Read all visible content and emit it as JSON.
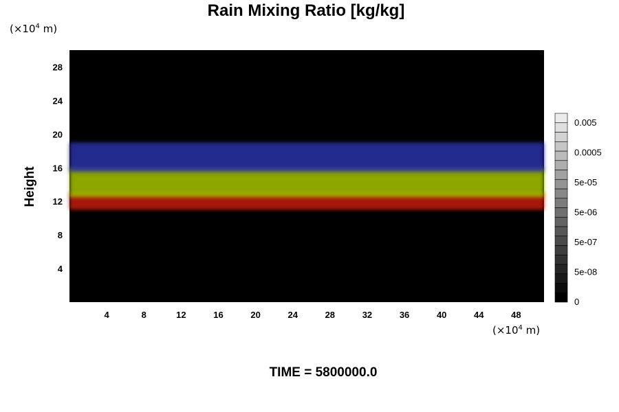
{
  "chart_data": {
    "type": "heatmap",
    "title": "Rain Mixing Ratio [kg/kg]",
    "ylabel": "Height",
    "xlabel": "",
    "x_unit": {
      "base": "(×10",
      "exp": "4",
      "tail": " m)"
    },
    "y_unit": {
      "base": "(×10",
      "exp": "4",
      "tail": " m)"
    },
    "xlim": [
      0,
      51
    ],
    "ylim": [
      0,
      30
    ],
    "x_ticks": [
      4,
      8,
      12,
      16,
      20,
      24,
      28,
      32,
      36,
      40,
      44,
      48
    ],
    "y_ticks": [
      4,
      8,
      12,
      16,
      20,
      24,
      28
    ],
    "background": "#000000",
    "layers": [
      {
        "color": "#c41a10",
        "y_range": [
          11,
          13
        ]
      },
      {
        "color": "#a6c400",
        "y_range": [
          12.5,
          16
        ]
      },
      {
        "color": "#2a30a6",
        "y_range": [
          15.5,
          19
        ]
      }
    ],
    "colorbar": {
      "labels": [
        "0.005",
        "0.0005",
        "5e-05",
        "5e-06",
        "5e-07",
        "5e-08",
        "0"
      ],
      "gray_levels": 20
    },
    "footer": "TIME = 5800000.0"
  }
}
